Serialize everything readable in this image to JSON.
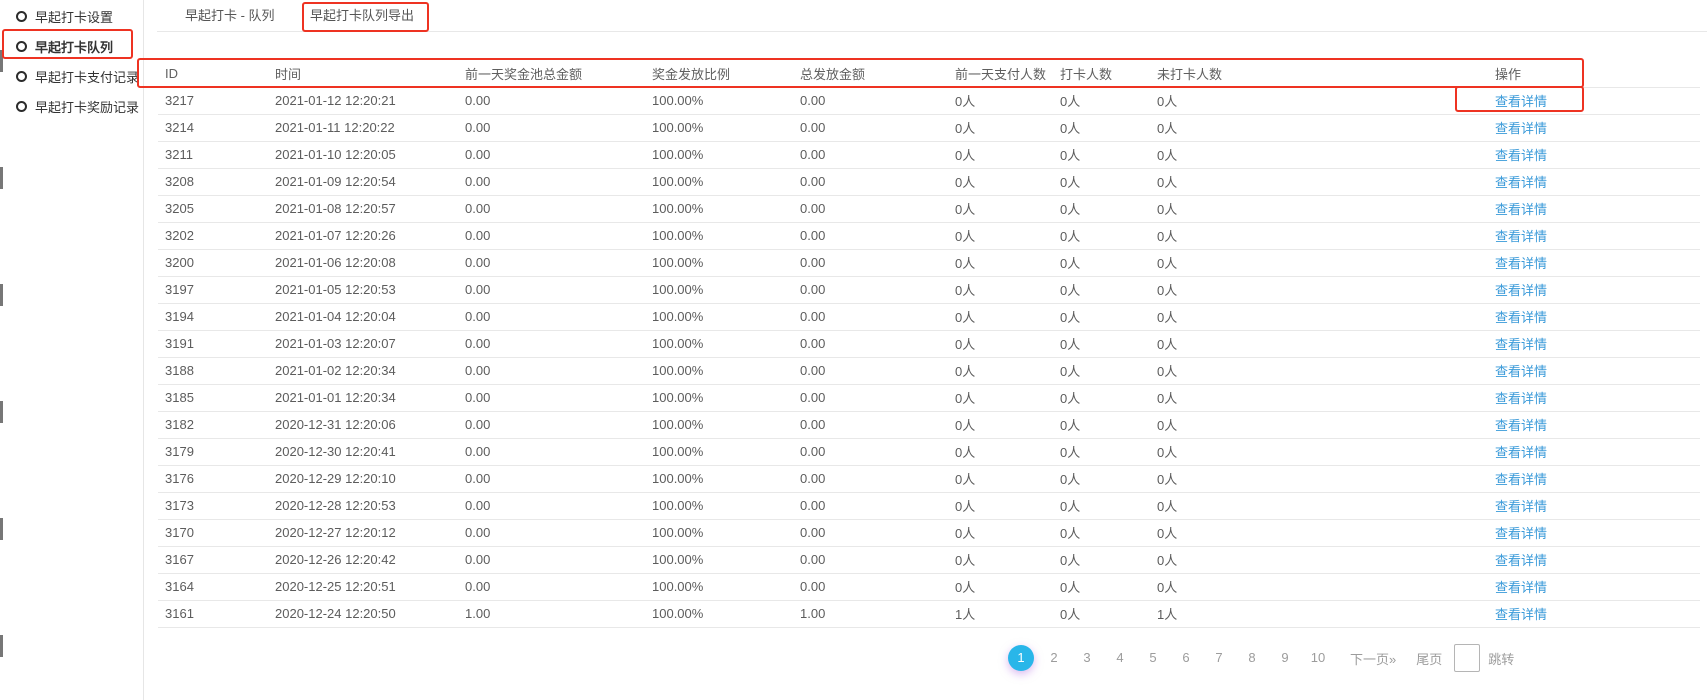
{
  "sidebar": {
    "items": [
      {
        "label": "早起打卡设置",
        "active": false
      },
      {
        "label": "早起打卡队列",
        "active": true
      },
      {
        "label": "早起打卡支付记录",
        "active": false
      },
      {
        "label": "早起打卡奖励记录",
        "active": false
      }
    ]
  },
  "tabs": [
    {
      "label": "早起打卡 - 队列",
      "highlighted": false
    },
    {
      "label": "早起打卡队列导出",
      "highlighted": true
    }
  ],
  "table": {
    "headers": [
      "ID",
      "时间",
      "前一天奖金池总金额",
      "奖金发放比例",
      "总发放金额",
      "前一天支付人数",
      "打卡人数",
      "未打卡人数",
      "操作"
    ],
    "action_label": "查看详情",
    "rows": [
      {
        "id": "3217",
        "time": "2021-01-12 12:20:21",
        "pool": "0.00",
        "ratio": "100.00%",
        "total": "0.00",
        "paid": "0人",
        "checked": "0人",
        "unchecked": "0人"
      },
      {
        "id": "3214",
        "time": "2021-01-11 12:20:22",
        "pool": "0.00",
        "ratio": "100.00%",
        "total": "0.00",
        "paid": "0人",
        "checked": "0人",
        "unchecked": "0人"
      },
      {
        "id": "3211",
        "time": "2021-01-10 12:20:05",
        "pool": "0.00",
        "ratio": "100.00%",
        "total": "0.00",
        "paid": "0人",
        "checked": "0人",
        "unchecked": "0人"
      },
      {
        "id": "3208",
        "time": "2021-01-09 12:20:54",
        "pool": "0.00",
        "ratio": "100.00%",
        "total": "0.00",
        "paid": "0人",
        "checked": "0人",
        "unchecked": "0人"
      },
      {
        "id": "3205",
        "time": "2021-01-08 12:20:57",
        "pool": "0.00",
        "ratio": "100.00%",
        "total": "0.00",
        "paid": "0人",
        "checked": "0人",
        "unchecked": "0人"
      },
      {
        "id": "3202",
        "time": "2021-01-07 12:20:26",
        "pool": "0.00",
        "ratio": "100.00%",
        "total": "0.00",
        "paid": "0人",
        "checked": "0人",
        "unchecked": "0人"
      },
      {
        "id": "3200",
        "time": "2021-01-06 12:20:08",
        "pool": "0.00",
        "ratio": "100.00%",
        "total": "0.00",
        "paid": "0人",
        "checked": "0人",
        "unchecked": "0人"
      },
      {
        "id": "3197",
        "time": "2021-01-05 12:20:53",
        "pool": "0.00",
        "ratio": "100.00%",
        "total": "0.00",
        "paid": "0人",
        "checked": "0人",
        "unchecked": "0人"
      },
      {
        "id": "3194",
        "time": "2021-01-04 12:20:04",
        "pool": "0.00",
        "ratio": "100.00%",
        "total": "0.00",
        "paid": "0人",
        "checked": "0人",
        "unchecked": "0人"
      },
      {
        "id": "3191",
        "time": "2021-01-03 12:20:07",
        "pool": "0.00",
        "ratio": "100.00%",
        "total": "0.00",
        "paid": "0人",
        "checked": "0人",
        "unchecked": "0人"
      },
      {
        "id": "3188",
        "time": "2021-01-02 12:20:34",
        "pool": "0.00",
        "ratio": "100.00%",
        "total": "0.00",
        "paid": "0人",
        "checked": "0人",
        "unchecked": "0人"
      },
      {
        "id": "3185",
        "time": "2021-01-01 12:20:34",
        "pool": "0.00",
        "ratio": "100.00%",
        "total": "0.00",
        "paid": "0人",
        "checked": "0人",
        "unchecked": "0人"
      },
      {
        "id": "3182",
        "time": "2020-12-31 12:20:06",
        "pool": "0.00",
        "ratio": "100.00%",
        "total": "0.00",
        "paid": "0人",
        "checked": "0人",
        "unchecked": "0人"
      },
      {
        "id": "3179",
        "time": "2020-12-30 12:20:41",
        "pool": "0.00",
        "ratio": "100.00%",
        "total": "0.00",
        "paid": "0人",
        "checked": "0人",
        "unchecked": "0人"
      },
      {
        "id": "3176",
        "time": "2020-12-29 12:20:10",
        "pool": "0.00",
        "ratio": "100.00%",
        "total": "0.00",
        "paid": "0人",
        "checked": "0人",
        "unchecked": "0人"
      },
      {
        "id": "3173",
        "time": "2020-12-28 12:20:53",
        "pool": "0.00",
        "ratio": "100.00%",
        "total": "0.00",
        "paid": "0人",
        "checked": "0人",
        "unchecked": "0人"
      },
      {
        "id": "3170",
        "time": "2020-12-27 12:20:12",
        "pool": "0.00",
        "ratio": "100.00%",
        "total": "0.00",
        "paid": "0人",
        "checked": "0人",
        "unchecked": "0人"
      },
      {
        "id": "3167",
        "time": "2020-12-26 12:20:42",
        "pool": "0.00",
        "ratio": "100.00%",
        "total": "0.00",
        "paid": "0人",
        "checked": "0人",
        "unchecked": "0人"
      },
      {
        "id": "3164",
        "time": "2020-12-25 12:20:51",
        "pool": "0.00",
        "ratio": "100.00%",
        "total": "0.00",
        "paid": "0人",
        "checked": "0人",
        "unchecked": "0人"
      },
      {
        "id": "3161",
        "time": "2020-12-24 12:20:50",
        "pool": "1.00",
        "ratio": "100.00%",
        "total": "1.00",
        "paid": "1人",
        "checked": "0人",
        "unchecked": "1人"
      }
    ]
  },
  "pagination": {
    "pages": [
      "1",
      "2",
      "3",
      "4",
      "5",
      "6",
      "7",
      "8",
      "9",
      "10"
    ],
    "active_page": "1",
    "next_label": "下一页»",
    "last_label": "尾页",
    "jump_label": "跳转",
    "jump_value": ""
  },
  "colors": {
    "accent_cyan": "#29b6e9",
    "link_blue": "#3a9ad9",
    "annotation_red": "#ee3322",
    "row_border": "#e8e8e8"
  }
}
